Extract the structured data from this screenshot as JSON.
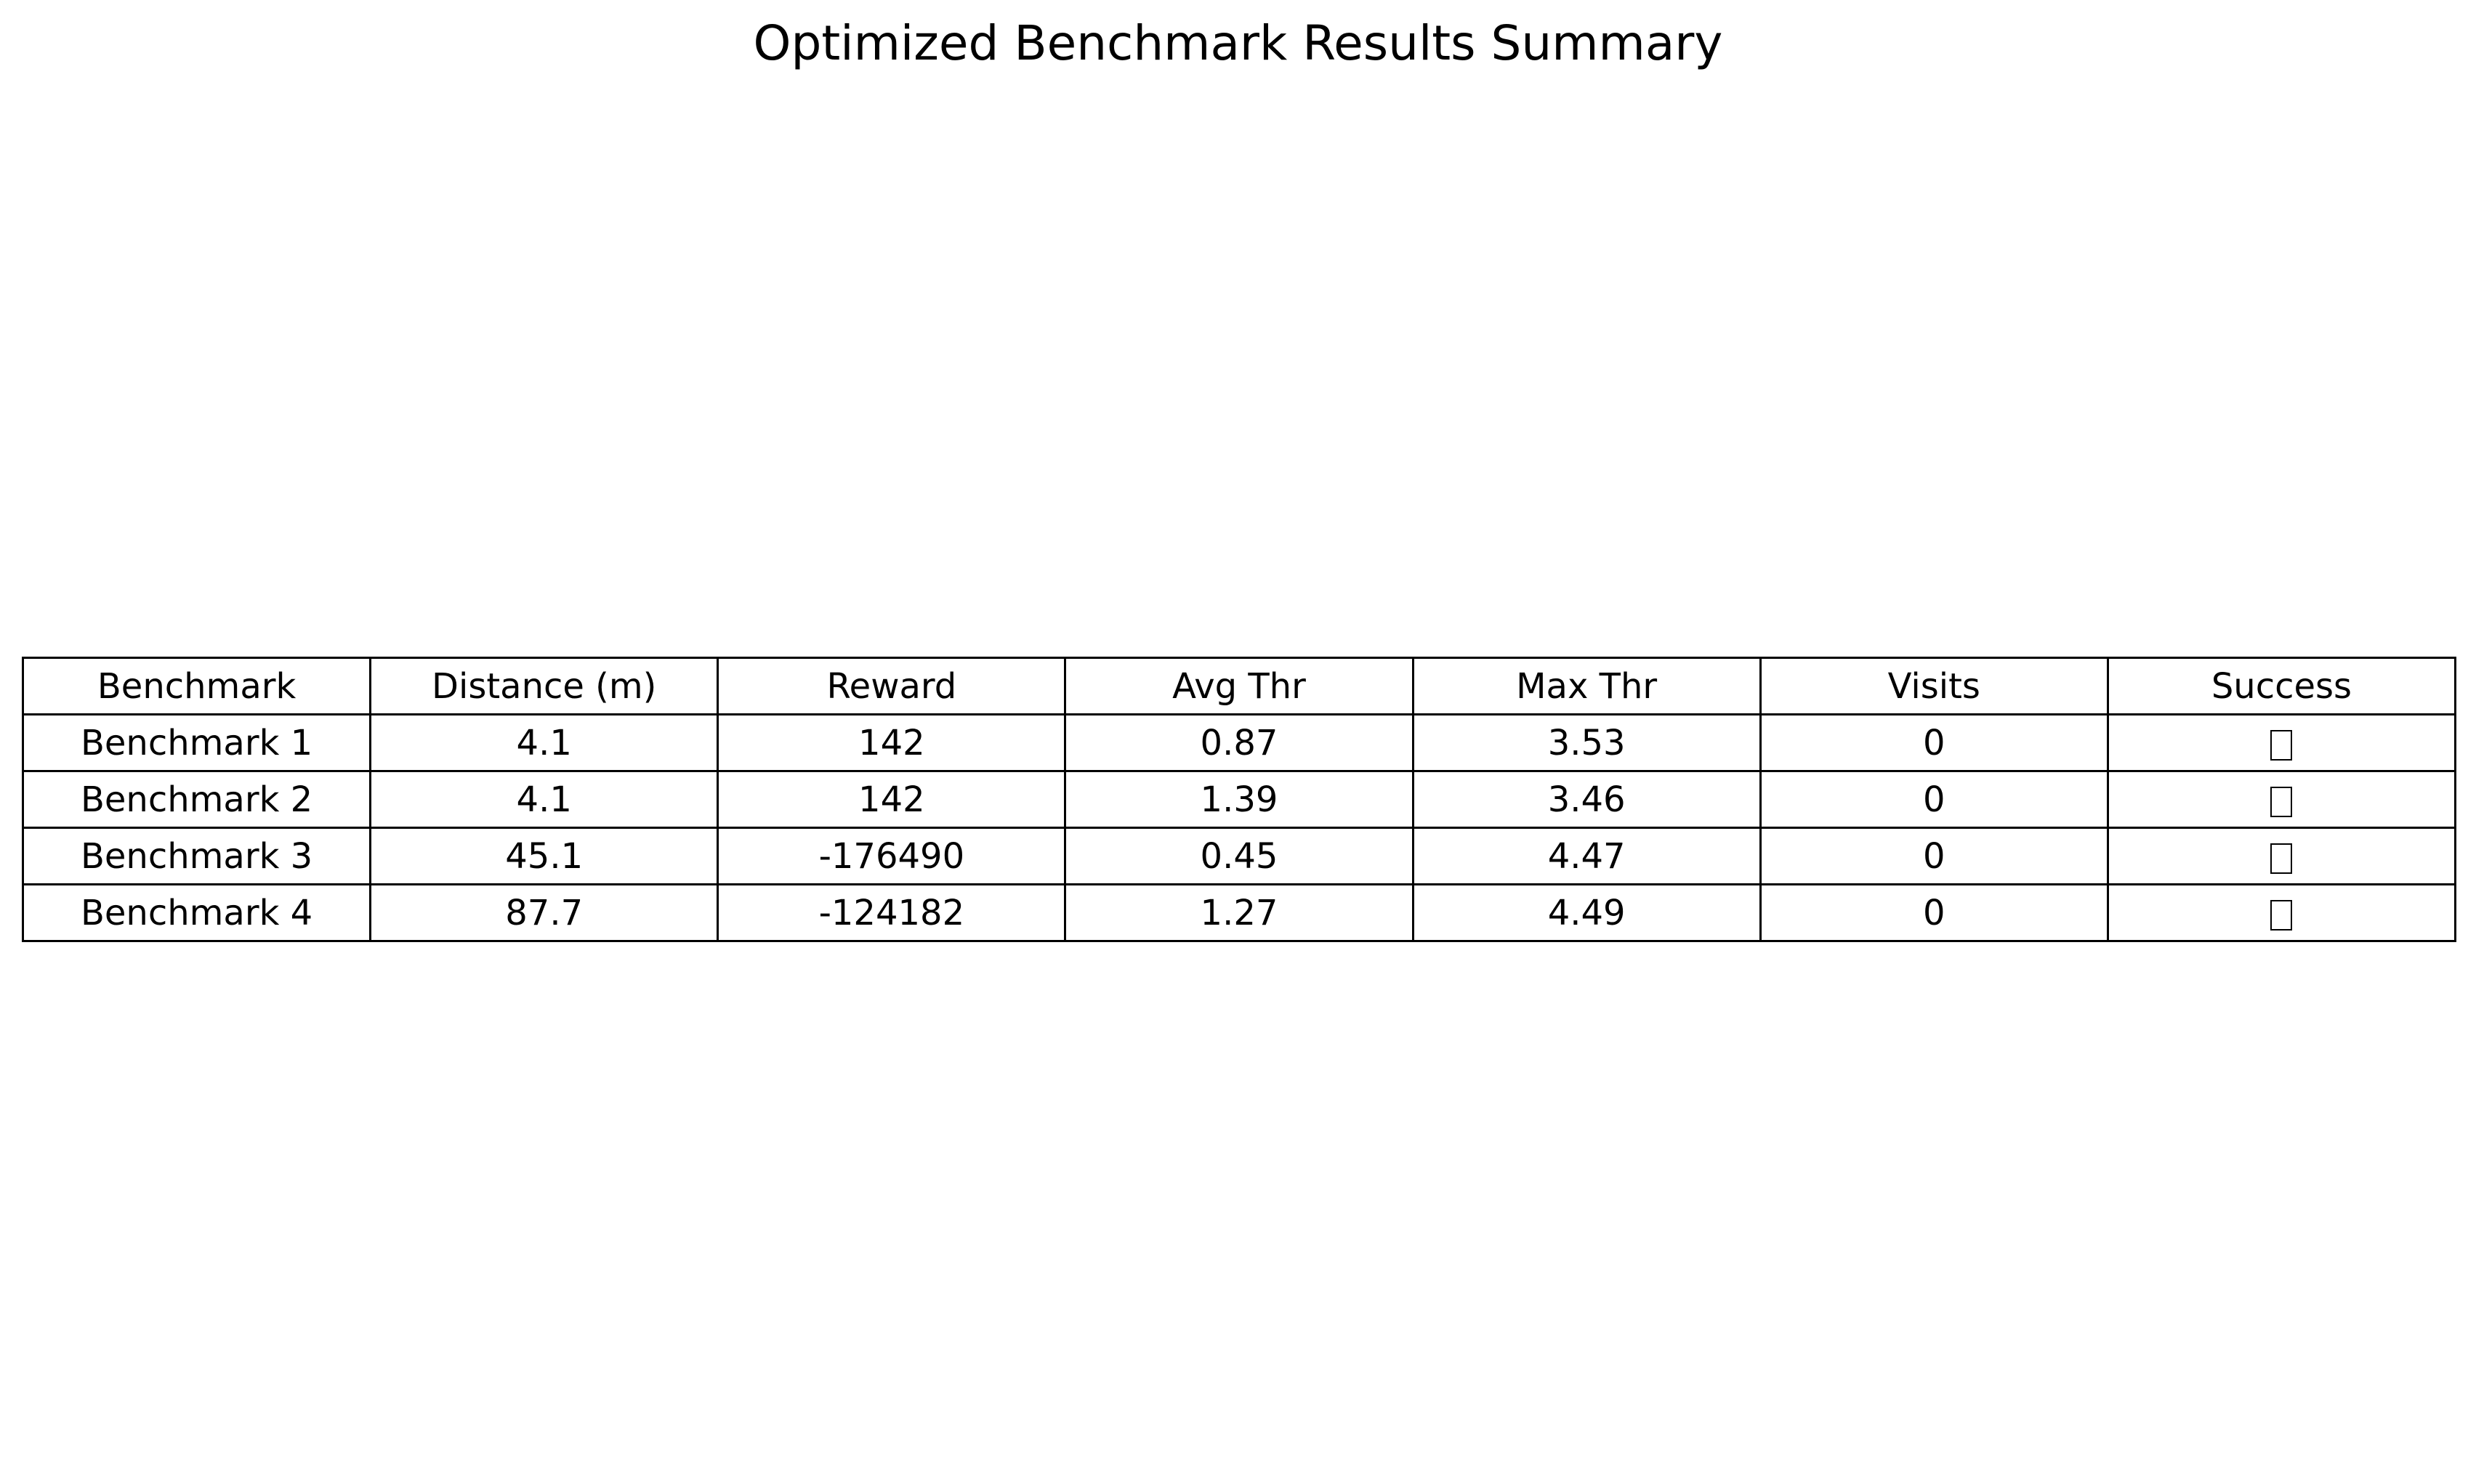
{
  "chart_data": {
    "type": "table",
    "title": "Optimized Benchmark Results Summary",
    "columns": [
      "Benchmark",
      "Distance (m)",
      "Reward",
      "Avg Thr",
      "Max Thr",
      "Visits",
      "Success"
    ],
    "rows": [
      [
        "Benchmark 1",
        "4.1",
        "142",
        "0.87",
        "3.53",
        "0",
        "□"
      ],
      [
        "Benchmark 2",
        "4.1",
        "142",
        "1.39",
        "3.46",
        "0",
        "□"
      ],
      [
        "Benchmark 3",
        "45.1",
        "-176490",
        "0.45",
        "4.47",
        "0",
        "□"
      ],
      [
        "Benchmark 4",
        "87.7",
        "-124182",
        "1.27",
        "4.49",
        "0",
        "□"
      ]
    ],
    "grid": true
  }
}
